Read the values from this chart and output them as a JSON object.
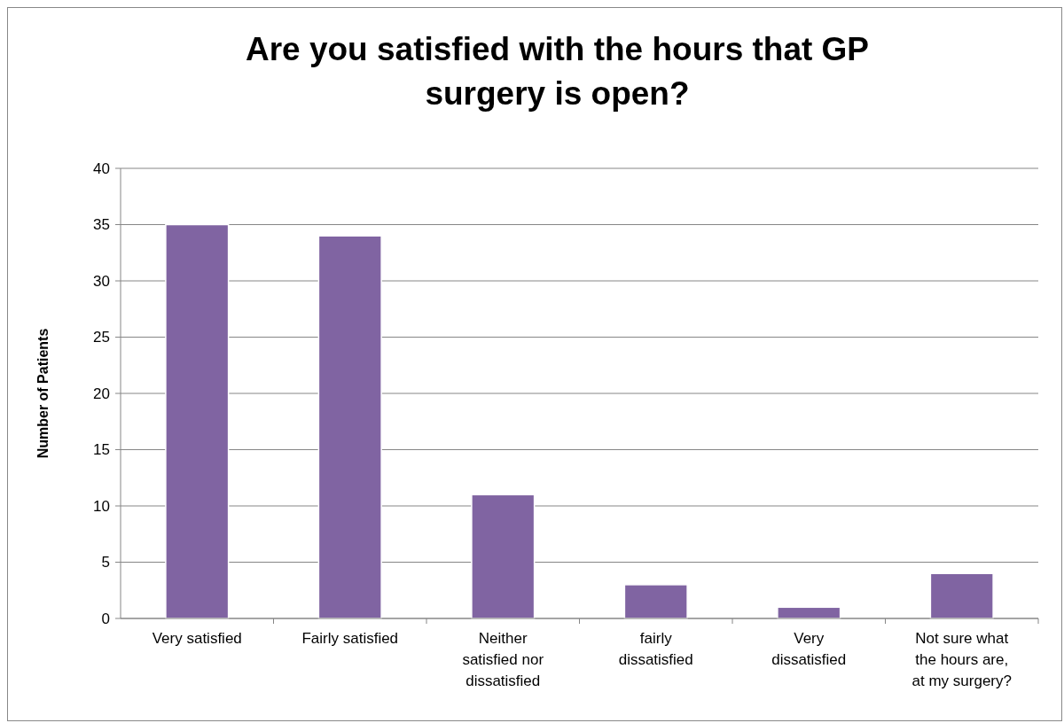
{
  "chart_data": {
    "type": "bar",
    "title": "Are you satisfied with the hours that GP surgery is open?",
    "ylabel": "Number of Patients",
    "categories": [
      "Very satisfied",
      "Fairly satisfied",
      "Neither satisfied nor dissatisfied",
      "fairly dissatisfied",
      "Very dissatisfied",
      "Not sure what the hours are, at my surgery?"
    ],
    "values": [
      35,
      34,
      11,
      3,
      1,
      4
    ],
    "color": "#8064a2",
    "ylim": [
      0,
      40
    ],
    "yticks": [
      0,
      5,
      10,
      15,
      20,
      25,
      30,
      35,
      40
    ],
    "grid": "y"
  }
}
